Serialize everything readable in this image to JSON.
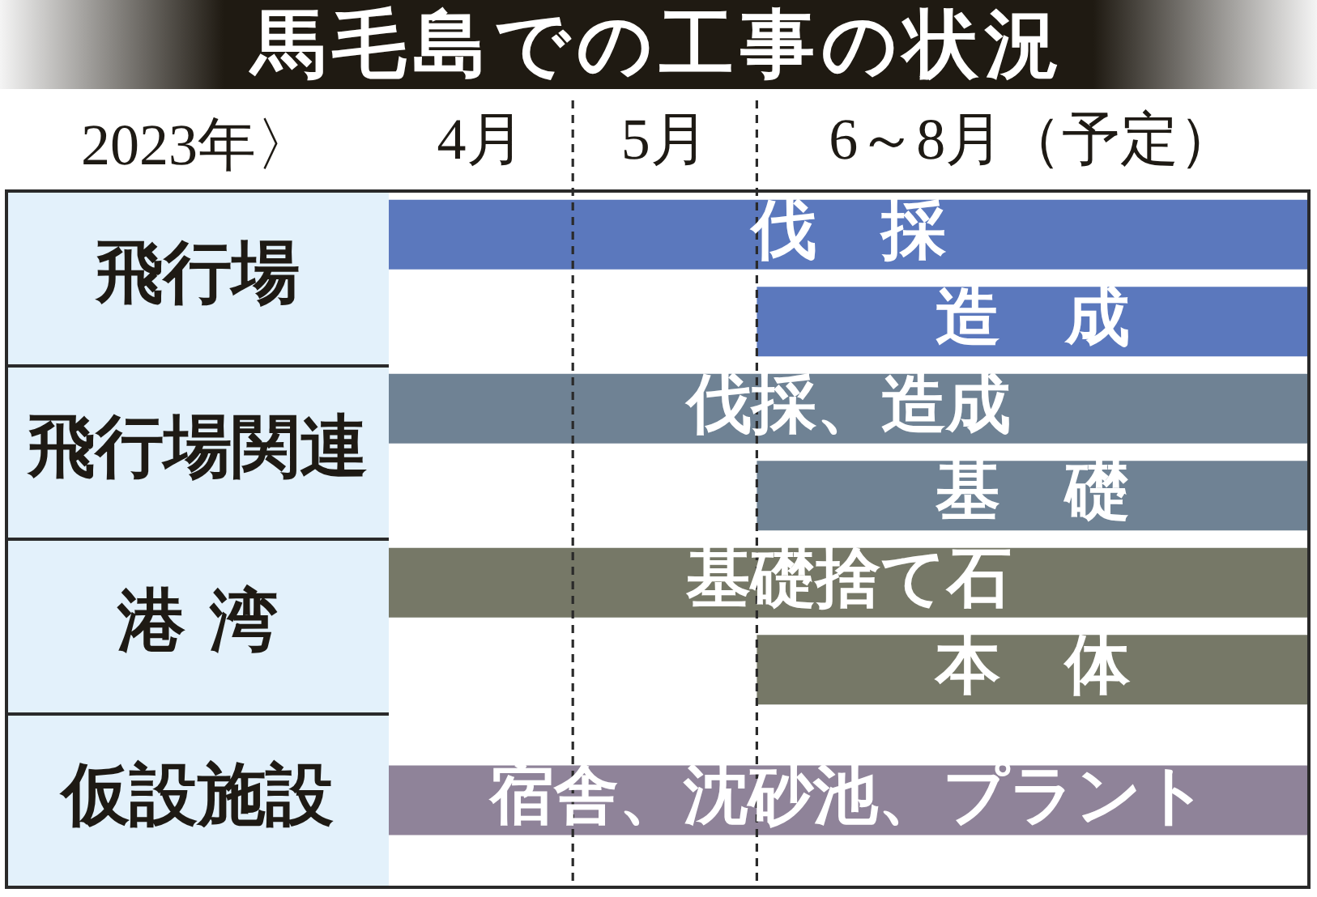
{
  "chart_data": {
    "type": "bar",
    "orientation": "horizontal",
    "title": "馬毛島での工事の状況",
    "xlabel": "2023年〉",
    "categories": [
      "飛行場",
      "飛行場関連",
      "港 湾",
      "仮設施設"
    ],
    "series": [
      {
        "values": [
          5,
          5,
          5,
          5
        ],
        "base": [
          4,
          4,
          4,
          4
        ],
        "colors": [
          "#5b78bd",
          "#6f8294",
          "#767867",
          "#8f8399"
        ],
        "value_labels": [
          "伐　採",
          "伐採、造成",
          "基礎捨て石",
          "宿舎、沈砂池、プラント"
        ]
      },
      {
        "values": [
          3,
          3,
          3,
          null
        ],
        "base": [
          6,
          6,
          6,
          null
        ],
        "colors": [
          "#5b78bd",
          "#6f8294",
          "#767867",
          null
        ],
        "value_labels": [
          "造　成",
          "基　礎",
          "本　体",
          null
        ]
      }
    ],
    "xlim": [
      4,
      9
    ],
    "xticks": [
      {
        "value": 4.5,
        "label": "4月"
      },
      {
        "value": 5.5,
        "label": "5月"
      },
      {
        "value": 7.5,
        "label": "6～8月（予定）"
      }
    ],
    "ref_lines": [
      {
        "axis": "x",
        "value": 5,
        "color": "#2a2a2a",
        "line_style": "dashed"
      },
      {
        "axis": "x",
        "value": 6,
        "color": "#2a2a2a",
        "line_style": "dashed"
      }
    ],
    "grid": false,
    "legend": false
  }
}
